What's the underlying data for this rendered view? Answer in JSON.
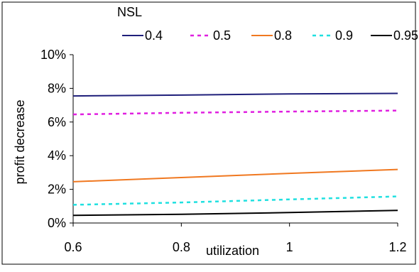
{
  "chart_data": {
    "type": "line",
    "title": "",
    "xlabel": "utilization",
    "ylabel": "profit decrease",
    "legend_title": "NSL",
    "legend_position": "top",
    "xlim": [
      0.6,
      1.2
    ],
    "ylim": [
      0,
      10
    ],
    "x_ticks": [
      "0.6",
      "0.8",
      "1",
      "1.2"
    ],
    "x_tick_values": [
      0.6,
      0.8,
      1.0,
      1.2
    ],
    "y_ticks": [
      "0%",
      "2%",
      "4%",
      "6%",
      "8%",
      "10%"
    ],
    "y_tick_values": [
      0,
      2,
      4,
      6,
      8,
      10
    ],
    "grid": false,
    "x": [
      0.6,
      0.8,
      1.0,
      1.2
    ],
    "series": [
      {
        "name": "0.4",
        "color": "#1f1f7a",
        "dash": "solid",
        "values": [
          7.55,
          7.6,
          7.67,
          7.7
        ]
      },
      {
        "name": "0.5",
        "color": "#e020e0",
        "dash": "dashed",
        "values": [
          6.45,
          6.55,
          6.62,
          6.68
        ]
      },
      {
        "name": "0.8",
        "color": "#f07820",
        "dash": "solid",
        "values": [
          2.45,
          2.7,
          2.95,
          3.18
        ]
      },
      {
        "name": "0.9",
        "color": "#20e0e0",
        "dash": "dashed",
        "values": [
          1.08,
          1.22,
          1.4,
          1.58
        ]
      },
      {
        "name": "0.95",
        "color": "#000000",
        "dash": "solid",
        "values": [
          0.45,
          0.52,
          0.62,
          0.75
        ]
      }
    ]
  }
}
